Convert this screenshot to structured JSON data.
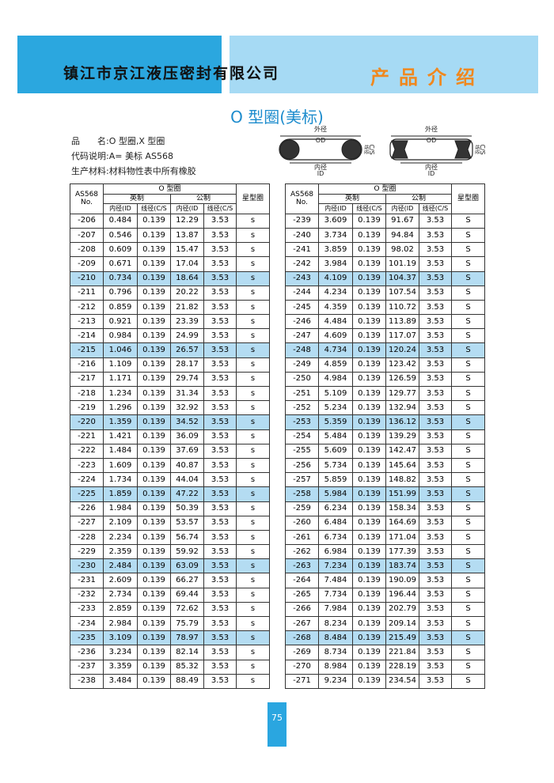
{
  "header": {
    "company": "镇江市京江液压密封有限公司",
    "section": "产品介绍"
  },
  "title": "O 型圈(美标)",
  "info": [
    "品　　名:O 型圈,X 型圈",
    "代码说明:A= 美标 AS568",
    "生产材料:材料物性表中所有橡胶"
  ],
  "diagram": {
    "outer_dia": "外径",
    "od": "OD",
    "inner_dia": "内径",
    "id": "ID",
    "cs": "C/S",
    "cs_cn": "线径"
  },
  "table_header": {
    "no": "AS568",
    "no2": "No.",
    "group": "O 型圈",
    "inch": "英制",
    "metric": "公制",
    "id": "内径(ID",
    "cs": "线径(C/S",
    "star": "星型圈"
  },
  "tables": [
    {
      "rows": [
        [
          "-206",
          "0.484",
          "0.139",
          "12.29",
          "3.53",
          "s"
        ],
        [
          "-207",
          "0.546",
          "0.139",
          "13.87",
          "3.53",
          "s"
        ],
        [
          "-208",
          "0.609",
          "0.139",
          "15.47",
          "3.53",
          "s"
        ],
        [
          "-209",
          "0.671",
          "0.139",
          "17.04",
          "3.53",
          "s"
        ],
        [
          "-210",
          "0.734",
          "0.139",
          "18.64",
          "3.53",
          "s"
        ],
        [
          "-211",
          "0.796",
          "0.139",
          "20.22",
          "3.53",
          "s"
        ],
        [
          "-212",
          "0.859",
          "0.139",
          "21.82",
          "3.53",
          "s"
        ],
        [
          "-213",
          "0.921",
          "0.139",
          "23.39",
          "3.53",
          "s"
        ],
        [
          "-214",
          "0.984",
          "0.139",
          "24.99",
          "3.53",
          "s"
        ],
        [
          "-215",
          "1.046",
          "0.139",
          "26.57",
          "3.53",
          "s"
        ],
        [
          "-216",
          "1.109",
          "0.139",
          "28.17",
          "3.53",
          "s"
        ],
        [
          "-217",
          "1.171",
          "0.139",
          "29.74",
          "3.53",
          "s"
        ],
        [
          "-218",
          "1.234",
          "0.139",
          "31.34",
          "3.53",
          "s"
        ],
        [
          "-219",
          "1.296",
          "0.139",
          "32.92",
          "3.53",
          "s"
        ],
        [
          "-220",
          "1.359",
          "0.139",
          "34.52",
          "3.53",
          "s"
        ],
        [
          "-221",
          "1.421",
          "0.139",
          "36.09",
          "3.53",
          "s"
        ],
        [
          "-222",
          "1.484",
          "0.139",
          "37.69",
          "3.53",
          "s"
        ],
        [
          "-223",
          "1.609",
          "0.139",
          "40.87",
          "3.53",
          "s"
        ],
        [
          "-224",
          "1.734",
          "0.139",
          "44.04",
          "3.53",
          "s"
        ],
        [
          "-225",
          "1.859",
          "0.139",
          "47.22",
          "3.53",
          "s"
        ],
        [
          "-226",
          "1.984",
          "0.139",
          "50.39",
          "3.53",
          "s"
        ],
        [
          "-227",
          "2.109",
          "0.139",
          "53.57",
          "3.53",
          "s"
        ],
        [
          "-228",
          "2.234",
          "0.139",
          "56.74",
          "3.53",
          "s"
        ],
        [
          "-229",
          "2.359",
          "0.139",
          "59.92",
          "3.53",
          "s"
        ],
        [
          "-230",
          "2.484",
          "0.139",
          "63.09",
          "3.53",
          "s"
        ],
        [
          "-231",
          "2.609",
          "0.139",
          "66.27",
          "3.53",
          "s"
        ],
        [
          "-232",
          "2.734",
          "0.139",
          "69.44",
          "3.53",
          "s"
        ],
        [
          "-233",
          "2.859",
          "0.139",
          "72.62",
          "3.53",
          "s"
        ],
        [
          "-234",
          "2.984",
          "0.139",
          "75.79",
          "3.53",
          "s"
        ],
        [
          "-235",
          "3.109",
          "0.139",
          "78.97",
          "3.53",
          "s"
        ],
        [
          "-236",
          "3.234",
          "0.139",
          "82.14",
          "3.53",
          "s"
        ],
        [
          "-237",
          "3.359",
          "0.139",
          "85.32",
          "3.53",
          "s"
        ],
        [
          "-238",
          "3.484",
          "0.139",
          "88.49",
          "3.53",
          "s"
        ]
      ]
    },
    {
      "rows": [
        [
          "-239",
          "3.609",
          "0.139",
          "91.67",
          "3.53",
          "S"
        ],
        [
          "-240",
          "3.734",
          "0.139",
          "94.84",
          "3.53",
          "S"
        ],
        [
          "-241",
          "3.859",
          "0.139",
          "98.02",
          "3.53",
          "S"
        ],
        [
          "-242",
          "3.984",
          "0.139",
          "101.19",
          "3.53",
          "S"
        ],
        [
          "-243",
          "4.109",
          "0.139",
          "104.37",
          "3.53",
          "S"
        ],
        [
          "-244",
          "4.234",
          "0.139",
          "107.54",
          "3.53",
          "S"
        ],
        [
          "-245",
          "4.359",
          "0.139",
          "110.72",
          "3.53",
          "S"
        ],
        [
          "-246",
          "4.484",
          "0.139",
          "113.89",
          "3.53",
          "S"
        ],
        [
          "-247",
          "4.609",
          "0.139",
          "117.07",
          "3.53",
          "S"
        ],
        [
          "-248",
          "4.734",
          "0.139",
          "120.24",
          "3.53",
          "S"
        ],
        [
          "-249",
          "4.859",
          "0.139",
          "123.42",
          "3.53",
          "S"
        ],
        [
          "-250",
          "4.984",
          "0.139",
          "126.59",
          "3.53",
          "S"
        ],
        [
          "-251",
          "5.109",
          "0.139",
          "129.77",
          "3.53",
          "S"
        ],
        [
          "-252",
          "5.234",
          "0.139",
          "132.94",
          "3.53",
          "S"
        ],
        [
          "-253",
          "5.359",
          "0.139",
          "136.12",
          "3.53",
          "S"
        ],
        [
          "-254",
          "5.484",
          "0.139",
          "139.29",
          "3.53",
          "S"
        ],
        [
          "-255",
          "5.609",
          "0.139",
          "142.47",
          "3.53",
          "S"
        ],
        [
          "-256",
          "5.734",
          "0.139",
          "145.64",
          "3.53",
          "S"
        ],
        [
          "-257",
          "5.859",
          "0.139",
          "148.82",
          "3.53",
          "S"
        ],
        [
          "-258",
          "5.984",
          "0.139",
          "151.99",
          "3.53",
          "S"
        ],
        [
          "-259",
          "6.234",
          "0.139",
          "158.34",
          "3.53",
          "S"
        ],
        [
          "-260",
          "6.484",
          "0.139",
          "164.69",
          "3.53",
          "S"
        ],
        [
          "-261",
          "6.734",
          "0.139",
          "171.04",
          "3.53",
          "S"
        ],
        [
          "-262",
          "6.984",
          "0.139",
          "177.39",
          "3.53",
          "S"
        ],
        [
          "-263",
          "7.234",
          "0.139",
          "183.74",
          "3.53",
          "S"
        ],
        [
          "-264",
          "7.484",
          "0.139",
          "190.09",
          "3.53",
          "S"
        ],
        [
          "-265",
          "7.734",
          "0.139",
          "196.44",
          "3.53",
          "S"
        ],
        [
          "-266",
          "7.984",
          "0.139",
          "202.79",
          "3.53",
          "S"
        ],
        [
          "-267",
          "8.234",
          "0.139",
          "209.14",
          "3.53",
          "S"
        ],
        [
          "-268",
          "8.484",
          "0.139",
          "215.49",
          "3.53",
          "S"
        ],
        [
          "-269",
          "8.734",
          "0.139",
          "221.84",
          "3.53",
          "S"
        ],
        [
          "-270",
          "8.984",
          "0.139",
          "228.19",
          "3.53",
          "S"
        ],
        [
          "-271",
          "9.234",
          "0.139",
          "234.54",
          "3.53",
          "S"
        ]
      ]
    }
  ],
  "page_number": "75"
}
